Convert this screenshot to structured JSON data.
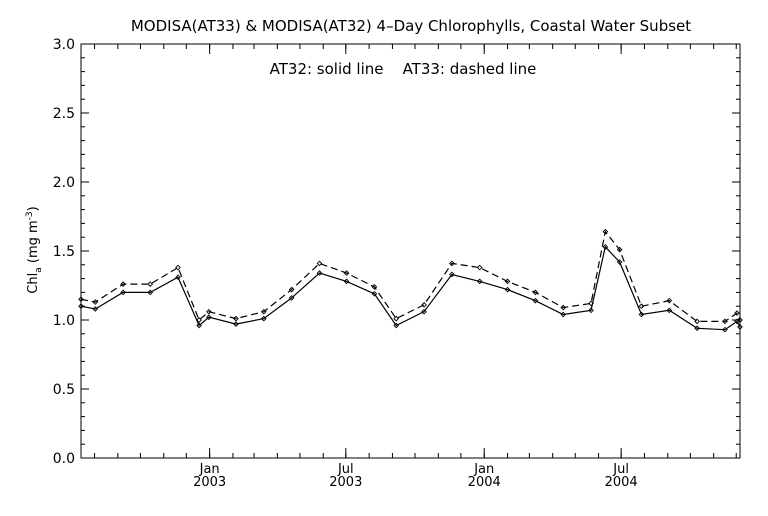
{
  "chart_data": {
    "type": "line",
    "title": "MODISA(AT33) & MODISA(AT32) 4–Day Chlorophylls, Coastal Water Subset",
    "annotation": "AT32: solid line    AT33: dashed line",
    "ylabel": {
      "main": "Chl",
      "sub": "a",
      "unit_open": " (mg m",
      "unit_sup": "-3",
      "unit_close": ")"
    },
    "xlabel": "",
    "ylim": [
      0.0,
      3.0
    ],
    "yticks": [
      0.0,
      0.5,
      1.0,
      1.5,
      2.0,
      2.5,
      3.0
    ],
    "ytick_labels": [
      "0.0",
      "0.5",
      "1.0",
      "1.5",
      "2.0",
      "2.5",
      "3.0"
    ],
    "xlim": [
      "2002-07-14",
      "2004-12-06"
    ],
    "xticks": [
      {
        "date": "2003-01-01",
        "month": "Jan",
        "year": "2003"
      },
      {
        "date": "2003-07-01",
        "month": "Jul",
        "year": "2003"
      },
      {
        "date": "2004-01-01",
        "month": "Jan",
        "year": "2004"
      },
      {
        "date": "2004-07-01",
        "month": "Jul",
        "year": "2004"
      }
    ],
    "grid": false,
    "series": [
      {
        "name": "AT32",
        "style": "solid",
        "points": [
          [
            "2002-07-14",
            1.1
          ],
          [
            "2002-08-02",
            1.08
          ],
          [
            "2002-09-08",
            1.2
          ],
          [
            "2002-10-14",
            1.2
          ],
          [
            "2002-11-20",
            1.31
          ],
          [
            "2002-12-18",
            0.96
          ],
          [
            "2002-12-31",
            1.02
          ],
          [
            "2003-02-05",
            0.97
          ],
          [
            "2003-03-14",
            1.01
          ],
          [
            "2003-04-20",
            1.16
          ],
          [
            "2003-05-27",
            1.34
          ],
          [
            "2003-07-02",
            1.28
          ],
          [
            "2003-08-08",
            1.19
          ],
          [
            "2003-09-06",
            0.96
          ],
          [
            "2003-10-13",
            1.06
          ],
          [
            "2003-11-19",
            1.33
          ],
          [
            "2003-12-26",
            1.28
          ],
          [
            "2004-02-01",
            1.22
          ],
          [
            "2004-03-09",
            1.14
          ],
          [
            "2004-04-15",
            1.04
          ],
          [
            "2004-05-22",
            1.07
          ],
          [
            "2004-06-10",
            1.53
          ],
          [
            "2004-06-29",
            1.42
          ],
          [
            "2004-07-28",
            1.04
          ],
          [
            "2004-09-03",
            1.07
          ],
          [
            "2004-10-10",
            0.94
          ],
          [
            "2004-11-16",
            0.93
          ],
          [
            "2004-12-02",
            0.99
          ],
          [
            "2004-12-06",
            0.95
          ]
        ]
      },
      {
        "name": "AT33",
        "style": "dashed",
        "points": [
          [
            "2002-07-14",
            1.15
          ],
          [
            "2002-08-02",
            1.13
          ],
          [
            "2002-09-08",
            1.26
          ],
          [
            "2002-10-14",
            1.26
          ],
          [
            "2002-11-20",
            1.38
          ],
          [
            "2002-12-18",
            1.0
          ],
          [
            "2002-12-31",
            1.06
          ],
          [
            "2003-02-05",
            1.01
          ],
          [
            "2003-03-14",
            1.06
          ],
          [
            "2003-04-20",
            1.22
          ],
          [
            "2003-05-27",
            1.41
          ],
          [
            "2003-07-02",
            1.34
          ],
          [
            "2003-08-08",
            1.24
          ],
          [
            "2003-09-06",
            1.01
          ],
          [
            "2003-10-13",
            1.11
          ],
          [
            "2003-11-19",
            1.41
          ],
          [
            "2003-12-26",
            1.38
          ],
          [
            "2004-02-01",
            1.28
          ],
          [
            "2004-03-09",
            1.2
          ],
          [
            "2004-04-15",
            1.09
          ],
          [
            "2004-05-22",
            1.12
          ],
          [
            "2004-06-10",
            1.64
          ],
          [
            "2004-06-29",
            1.51
          ],
          [
            "2004-07-28",
            1.1
          ],
          [
            "2004-09-03",
            1.14
          ],
          [
            "2004-10-10",
            0.99
          ],
          [
            "2004-11-16",
            0.99
          ],
          [
            "2004-12-02",
            1.05
          ],
          [
            "2004-12-06",
            1.0
          ]
        ]
      }
    ]
  }
}
